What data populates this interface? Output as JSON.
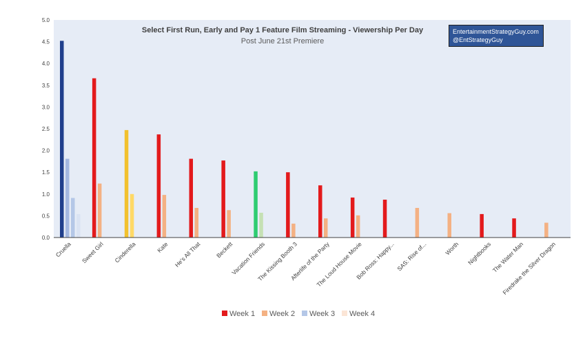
{
  "chart_data": {
    "type": "bar",
    "title": "Select First Run, Early and Pay 1 Feature Film Streaming - Viewership Per Day",
    "subtitle": "Post June 21st Premiere",
    "ylim": [
      0,
      5.0
    ],
    "yticks": [
      "0.0",
      "0.5",
      "1.0",
      "1.5",
      "2.0",
      "2.5",
      "3.0",
      "3.5",
      "4.0",
      "4.5",
      "5.0"
    ],
    "grid": false,
    "legend_position": "bottom",
    "categories": [
      "Cruella",
      "Sweet Girl",
      "Cinderella",
      "Kate",
      "He's All That",
      "Beckett",
      "Vacation Friends",
      "The Kissing Booth 3",
      "Afterlife of the Party",
      "The Loud House Movie",
      "Bob Ross: Happy...",
      "SAS: Rise of...",
      "Worth",
      "Nightbooks",
      "The Water Man",
      "Firedrake the Silver Dragon"
    ],
    "series": [
      {
        "name": "Week 1",
        "values": [
          4.52,
          3.66,
          2.47,
          2.37,
          1.81,
          1.77,
          1.52,
          1.5,
          1.2,
          0.92,
          0.87,
          null,
          null,
          0.54,
          0.44,
          null
        ]
      },
      {
        "name": "Week 2",
        "values": [
          null,
          1.24,
          1.0,
          0.98,
          0.68,
          0.63,
          0.57,
          0.32,
          0.44,
          0.51,
          null,
          0.68,
          0.56,
          null,
          null,
          0.34
        ]
      },
      {
        "name": "Week 3",
        "values": [
          1.81,
          null,
          null,
          null,
          null,
          null,
          null,
          null,
          null,
          null,
          null,
          null,
          null,
          null,
          null,
          null
        ]
      },
      {
        "name": "Week 4",
        "values": [
          0.91,
          null,
          null,
          null,
          null,
          null,
          null,
          null,
          null,
          null,
          null,
          null,
          null,
          null,
          null,
          null
        ]
      },
      {
        "values": [
          0.54,
          null,
          null,
          null,
          null,
          null,
          null,
          null,
          null,
          null,
          null,
          null,
          null,
          null,
          null,
          null
        ]
      }
    ],
    "legend_colors": {
      "Week 1": "#e31a1c",
      "Week 2": "#f4b183",
      "Week 3": "#b4c7e7",
      "Week 4": "#fbe5d6"
    },
    "special_colors": {
      "Cruella": [
        "#203f8c",
        "#a4b8e0",
        "#b4c7e7",
        "#dae3f3"
      ],
      "Cinderella": [
        "#f2c12e",
        "#ffd966",
        "#fff2cc"
      ],
      "Vacation Friends": [
        "#2ecc71",
        "#c5e0b4"
      ]
    },
    "plot_background": "#e6ecf6"
  },
  "brand": {
    "line1": "EntertainmentStrategyGuy.com",
    "line2": "@EntStrategyGuy"
  }
}
